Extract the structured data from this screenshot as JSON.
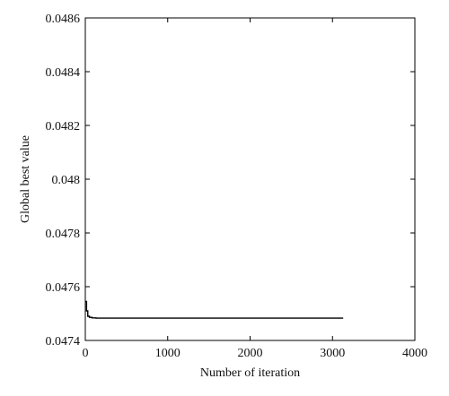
{
  "chart_data": {
    "type": "line",
    "title": "",
    "xlabel": "Number of iteration",
    "ylabel": "Global best value",
    "xlim": [
      0,
      4000
    ],
    "ylim": [
      0.0474,
      0.0486
    ],
    "x_ticks": [
      0,
      1000,
      2000,
      3000,
      4000
    ],
    "x_tick_labels": [
      "0",
      "1000",
      "2000",
      "3000",
      "4000"
    ],
    "y_ticks": [
      0.0474,
      0.0476,
      0.0478,
      0.048,
      0.0482,
      0.0484,
      0.0486
    ],
    "y_tick_labels": [
      "0.0474",
      "0.0476",
      "0.0478",
      "0.048",
      "0.0482",
      "0.0484",
      "0.0486"
    ],
    "grid": false,
    "line_color": "#000000",
    "series": [
      {
        "step": true,
        "x": [
          0,
          15,
          30,
          50,
          80,
          130,
          3130
        ],
        "y": [
          0.047545,
          0.04751,
          0.04749,
          0.047486,
          0.047484,
          0.047483,
          0.047483
        ]
      }
    ]
  }
}
